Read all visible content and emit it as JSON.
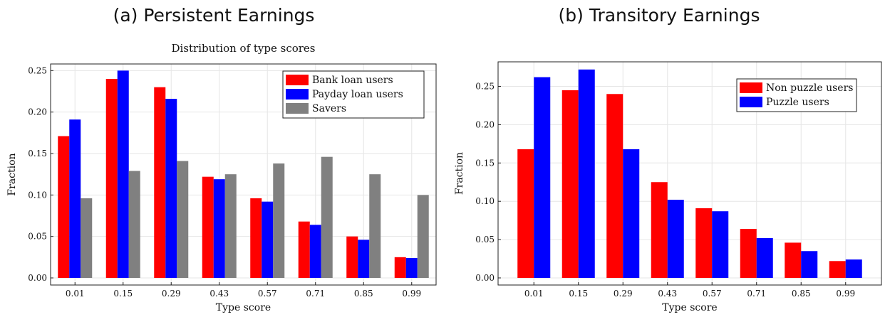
{
  "panels": {
    "a": {
      "title": "(a) Persistent Earnings"
    },
    "b": {
      "title": "(b) Transitory Earnings"
    }
  },
  "chart_data": [
    {
      "type": "bar",
      "title": "Distribution of type scores",
      "xlabel": "Type score",
      "ylabel": "Fraction",
      "ylim": [
        0,
        0.258
      ],
      "yticks": [
        "0.00",
        "0.05",
        "0.10",
        "0.15",
        "0.20",
        "0.25"
      ],
      "categories": [
        "0.01",
        "0.15",
        "0.29",
        "0.43",
        "0.57",
        "0.71",
        "0.85",
        "0.99"
      ],
      "grid": true,
      "legend_position": "top-right",
      "series": [
        {
          "name": "Bank loan users",
          "color": "#ff0000",
          "values": [
            0.171,
            0.24,
            0.23,
            0.122,
            0.096,
            0.068,
            0.05,
            0.025
          ]
        },
        {
          "name": "Payday loan users",
          "color": "#0000ff",
          "values": [
            0.191,
            0.25,
            0.216,
            0.119,
            0.092,
            0.064,
            0.046,
            0.024
          ]
        },
        {
          "name": "Savers",
          "color": "#808080",
          "values": [
            0.096,
            0.129,
            0.141,
            0.125,
            0.138,
            0.146,
            0.125,
            0.1
          ]
        }
      ]
    },
    {
      "type": "bar",
      "title": "",
      "xlabel": "Type score",
      "ylabel": "Fraction",
      "ylim": [
        0,
        0.282
      ],
      "yticks": [
        "0.00",
        "0.05",
        "0.10",
        "0.15",
        "0.20",
        "0.25"
      ],
      "categories": [
        "0.01",
        "0.15",
        "0.29",
        "0.43",
        "0.57",
        "0.71",
        "0.85",
        "0.99"
      ],
      "grid": true,
      "legend_position": "top-right",
      "series": [
        {
          "name": "Non puzzle users",
          "color": "#ff0000",
          "values": [
            0.168,
            0.245,
            0.24,
            0.125,
            0.091,
            0.064,
            0.046,
            0.022
          ]
        },
        {
          "name": "Puzzle users",
          "color": "#0000ff",
          "values": [
            0.262,
            0.272,
            0.168,
            0.102,
            0.087,
            0.052,
            0.035,
            0.024
          ]
        }
      ]
    }
  ]
}
